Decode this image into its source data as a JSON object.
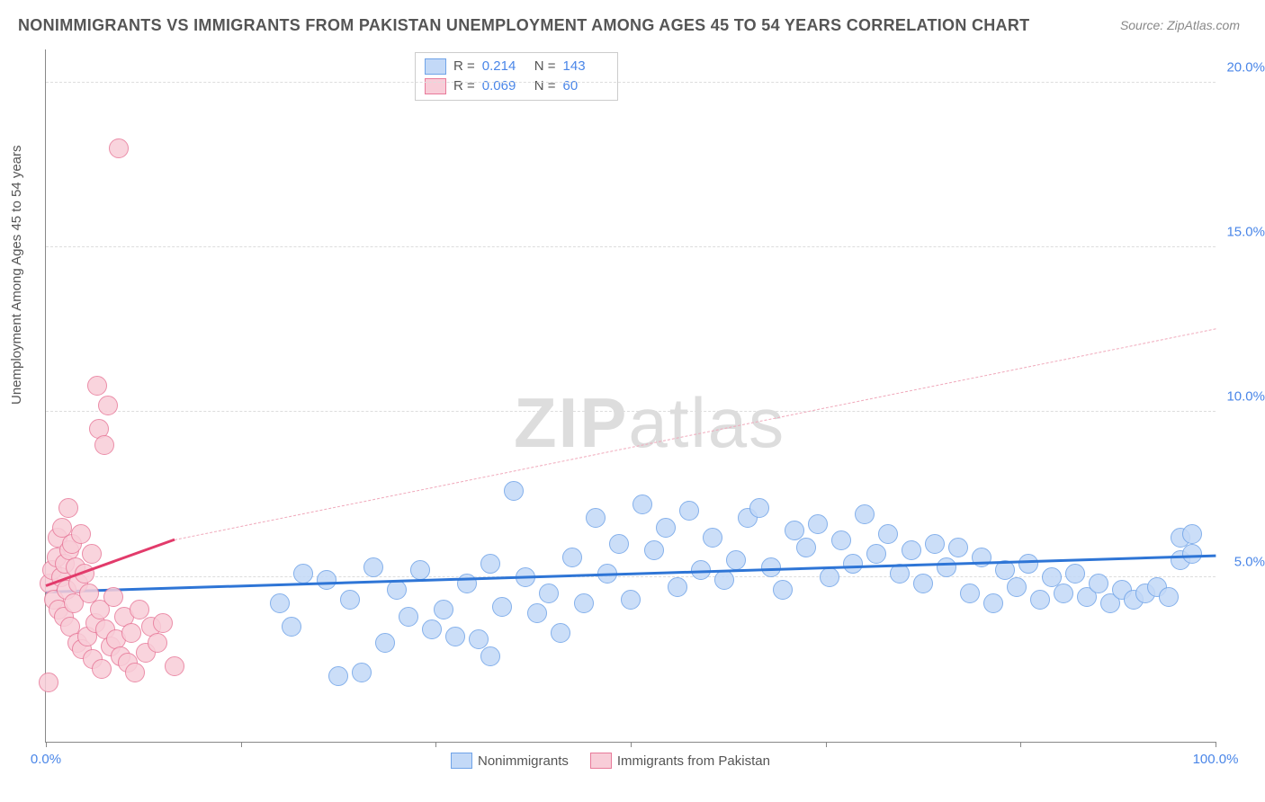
{
  "title": "NONIMMIGRANTS VS IMMIGRANTS FROM PAKISTAN UNEMPLOYMENT AMONG AGES 45 TO 54 YEARS CORRELATION CHART",
  "source": "Source: ZipAtlas.com",
  "ylabel": "Unemployment Among Ages 45 to 54 years",
  "watermark_bold": "ZIP",
  "watermark_light": "atlas",
  "chart": {
    "type": "scatter",
    "xlim": [
      0,
      100
    ],
    "ylim": [
      0,
      21
    ],
    "x_ticks": [
      0,
      16.67,
      33.33,
      50,
      66.67,
      83.33,
      100
    ],
    "x_tick_labels": {
      "0": "0.0%",
      "100": "100.0%"
    },
    "y_gridlines": [
      5,
      10,
      15,
      20
    ],
    "y_tick_labels": {
      "5": "5.0%",
      "10": "10.0%",
      "15": "15.0%",
      "20": "20.0%"
    },
    "background_color": "#ffffff",
    "grid_color": "#dddddd",
    "axis_color": "#888888",
    "tick_label_color": "#4a86e8",
    "marker_radius": 10,
    "marker_stroke_width": 1.5,
    "series": [
      {
        "name": "Nonimmigrants",
        "fill_color": "#c3d9f7",
        "stroke_color": "#6fa3e8",
        "stats": {
          "R": "0.214",
          "N": "143"
        },
        "trend": {
          "x1": 0,
          "y1": 4.5,
          "x2": 100,
          "y2": 5.6,
          "color": "#2e75d6",
          "width": 3,
          "dash": "solid"
        },
        "points": [
          [
            20,
            4.2
          ],
          [
            21,
            3.5
          ],
          [
            22,
            5.1
          ],
          [
            24,
            4.9
          ],
          [
            25,
            2.0
          ],
          [
            26,
            4.3
          ],
          [
            27,
            2.1
          ],
          [
            28,
            5.3
          ],
          [
            29,
            3.0
          ],
          [
            30,
            4.6
          ],
          [
            31,
            3.8
          ],
          [
            32,
            5.2
          ],
          [
            33,
            3.4
          ],
          [
            34,
            4.0
          ],
          [
            35,
            3.2
          ],
          [
            36,
            4.8
          ],
          [
            37,
            3.1
          ],
          [
            38,
            5.4
          ],
          [
            38,
            2.6
          ],
          [
            39,
            4.1
          ],
          [
            40,
            7.6
          ],
          [
            41,
            5.0
          ],
          [
            42,
            3.9
          ],
          [
            43,
            4.5
          ],
          [
            44,
            3.3
          ],
          [
            45,
            5.6
          ],
          [
            46,
            4.2
          ],
          [
            47,
            6.8
          ],
          [
            48,
            5.1
          ],
          [
            49,
            6.0
          ],
          [
            50,
            4.3
          ],
          [
            51,
            7.2
          ],
          [
            52,
            5.8
          ],
          [
            53,
            6.5
          ],
          [
            54,
            4.7
          ],
          [
            55,
            7.0
          ],
          [
            56,
            5.2
          ],
          [
            57,
            6.2
          ],
          [
            58,
            4.9
          ],
          [
            59,
            5.5
          ],
          [
            60,
            6.8
          ],
          [
            61,
            7.1
          ],
          [
            62,
            5.3
          ],
          [
            63,
            4.6
          ],
          [
            64,
            6.4
          ],
          [
            65,
            5.9
          ],
          [
            66,
            6.6
          ],
          [
            67,
            5.0
          ],
          [
            68,
            6.1
          ],
          [
            69,
            5.4
          ],
          [
            70,
            6.9
          ],
          [
            71,
            5.7
          ],
          [
            72,
            6.3
          ],
          [
            73,
            5.1
          ],
          [
            74,
            5.8
          ],
          [
            75,
            4.8
          ],
          [
            76,
            6.0
          ],
          [
            77,
            5.3
          ],
          [
            78,
            5.9
          ],
          [
            79,
            4.5
          ],
          [
            80,
            5.6
          ],
          [
            81,
            4.2
          ],
          [
            82,
            5.2
          ],
          [
            83,
            4.7
          ],
          [
            84,
            5.4
          ],
          [
            85,
            4.3
          ],
          [
            86,
            5.0
          ],
          [
            87,
            4.5
          ],
          [
            88,
            5.1
          ],
          [
            89,
            4.4
          ],
          [
            90,
            4.8
          ],
          [
            91,
            4.2
          ],
          [
            92,
            4.6
          ],
          [
            93,
            4.3
          ],
          [
            94,
            4.5
          ],
          [
            95,
            4.7
          ],
          [
            96,
            4.4
          ],
          [
            97,
            5.5
          ],
          [
            97,
            6.2
          ],
          [
            98,
            5.7
          ],
          [
            98,
            6.3
          ]
        ]
      },
      {
        "name": "Immigrants from Pakistan",
        "fill_color": "#f8cdd8",
        "stroke_color": "#e87a9a",
        "stats": {
          "R": "0.069",
          "N": "60"
        },
        "trend_solid": {
          "x1": 0,
          "y1": 4.7,
          "x2": 11,
          "y2": 6.1,
          "color": "#e23b6b",
          "width": 3,
          "dash": "solid"
        },
        "trend_dashed": {
          "x1": 11,
          "y1": 6.1,
          "x2": 100,
          "y2": 12.5,
          "color": "#f0a9bb",
          "width": 1.5,
          "dash": "dashed"
        },
        "points": [
          [
            0.3,
            4.8
          ],
          [
            0.5,
            5.2
          ],
          [
            0.7,
            4.3
          ],
          [
            0.9,
            5.6
          ],
          [
            1.0,
            6.2
          ],
          [
            1.1,
            4.0
          ],
          [
            1.3,
            5.0
          ],
          [
            1.4,
            6.5
          ],
          [
            1.5,
            3.8
          ],
          [
            1.6,
            5.4
          ],
          [
            1.8,
            4.6
          ],
          [
            1.9,
            7.1
          ],
          [
            2.0,
            5.8
          ],
          [
            2.1,
            3.5
          ],
          [
            2.2,
            6.0
          ],
          [
            2.4,
            4.2
          ],
          [
            2.5,
            5.3
          ],
          [
            2.7,
            3.0
          ],
          [
            2.8,
            4.8
          ],
          [
            3.0,
            6.3
          ],
          [
            3.1,
            2.8
          ],
          [
            3.3,
            5.1
          ],
          [
            3.5,
            3.2
          ],
          [
            3.7,
            4.5
          ],
          [
            3.9,
            5.7
          ],
          [
            4.0,
            2.5
          ],
          [
            4.2,
            3.6
          ],
          [
            4.4,
            10.8
          ],
          [
            4.5,
            9.5
          ],
          [
            4.6,
            4.0
          ],
          [
            4.8,
            2.2
          ],
          [
            5.0,
            9.0
          ],
          [
            5.1,
            3.4
          ],
          [
            5.3,
            10.2
          ],
          [
            5.5,
            2.9
          ],
          [
            5.8,
            4.4
          ],
          [
            6.0,
            3.1
          ],
          [
            6.2,
            18.0
          ],
          [
            6.4,
            2.6
          ],
          [
            6.7,
            3.8
          ],
          [
            7.0,
            2.4
          ],
          [
            7.3,
            3.3
          ],
          [
            7.6,
            2.1
          ],
          [
            8.0,
            4.0
          ],
          [
            8.5,
            2.7
          ],
          [
            9.0,
            3.5
          ],
          [
            9.5,
            3.0
          ],
          [
            10.0,
            3.6
          ],
          [
            11.0,
            2.3
          ],
          [
            0.2,
            1.8
          ]
        ]
      }
    ]
  },
  "stats_legend": {
    "rows": [
      {
        "swatch_fill": "#c3d9f7",
        "swatch_stroke": "#6fa3e8",
        "R_label": "R =",
        "R": "0.214",
        "N_label": "N =",
        "N": "143"
      },
      {
        "swatch_fill": "#f8cdd8",
        "swatch_stroke": "#e87a9a",
        "R_label": "R =",
        "R": "0.069",
        "N_label": "N =",
        "N": "60"
      }
    ]
  },
  "bottom_legend": {
    "items": [
      {
        "swatch_fill": "#c3d9f7",
        "swatch_stroke": "#6fa3e8",
        "label": "Nonimmigrants"
      },
      {
        "swatch_fill": "#f8cdd8",
        "swatch_stroke": "#e87a9a",
        "label": "Immigrants from Pakistan"
      }
    ]
  }
}
